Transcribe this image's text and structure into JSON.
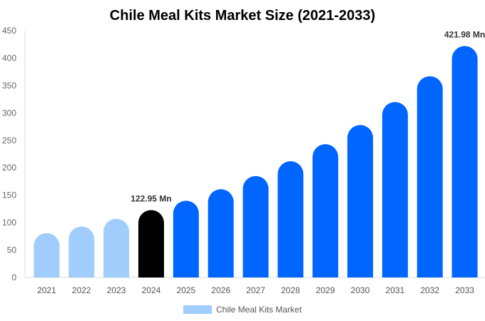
{
  "chart_data": {
    "type": "bar",
    "title": "Chile Meal Kits Market Size (2021-2033)",
    "xlabel": "",
    "ylabel": "",
    "ylim": [
      0,
      450
    ],
    "yticks": [
      0,
      50,
      100,
      150,
      200,
      250,
      300,
      350,
      400,
      450
    ],
    "grid": false,
    "legend_position": "bottom",
    "categories": [
      "2021",
      "2022",
      "2023",
      "2024",
      "2025",
      "2026",
      "2027",
      "2028",
      "2029",
      "2030",
      "2031",
      "2032",
      "2033"
    ],
    "series": [
      {
        "name": "Chile Meal Kits Market",
        "values": [
          81,
          93,
          107,
          122.95,
          140,
          161,
          185,
          212,
          243,
          278,
          320,
          367,
          421.98
        ]
      }
    ],
    "bar_colors": [
      "#a0cdfc",
      "#a0cdfc",
      "#a0cdfc",
      "#000000",
      "#0066ff",
      "#0066ff",
      "#0066ff",
      "#0066ff",
      "#0066ff",
      "#0066ff",
      "#0066ff",
      "#0066ff",
      "#0066ff"
    ],
    "legend_color": "#a0cdfc",
    "data_labels": [
      {
        "category": "2024",
        "text": "122.95 Mn"
      },
      {
        "category": "2033",
        "text": "421.98 Mn"
      }
    ]
  }
}
